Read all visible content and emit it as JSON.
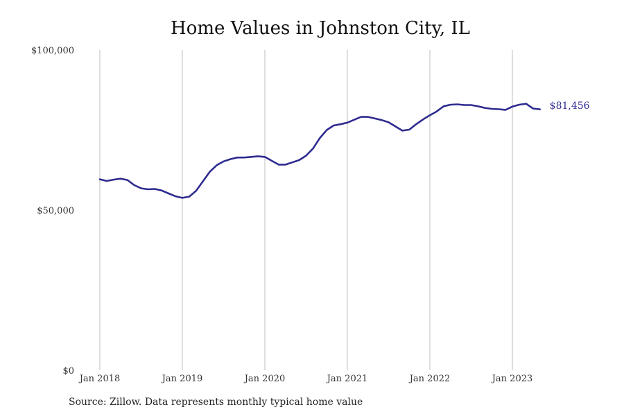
{
  "chart_data": {
    "type": "line",
    "title": "Home Values in Johnston City, IL",
    "xlabel": "",
    "ylabel": "",
    "ylim": [
      0,
      100000
    ],
    "y_ticks": [
      {
        "value": 0,
        "label": "$0"
      },
      {
        "value": 50000,
        "label": "$50,000"
      },
      {
        "value": 100000,
        "label": "$100,000"
      }
    ],
    "x_ticks": [
      {
        "year": 2018,
        "label": "Jan 2018"
      },
      {
        "year": 2019,
        "label": "Jan 2019"
      },
      {
        "year": 2020,
        "label": "Jan 2020"
      },
      {
        "year": 2021,
        "label": "Jan 2021"
      },
      {
        "year": 2022,
        "label": "Jan 2022"
      },
      {
        "year": 2023,
        "label": "Jan 2023"
      }
    ],
    "grid": "vertical at year ticks",
    "series": [
      {
        "color": "#2e2b8f",
        "x": [
          "2018-01",
          "2018-02",
          "2018-03",
          "2018-04",
          "2018-05",
          "2018-06",
          "2018-07",
          "2018-08",
          "2018-09",
          "2018-10",
          "2018-11",
          "2018-12",
          "2019-01",
          "2019-02",
          "2019-03",
          "2019-04",
          "2019-05",
          "2019-06",
          "2019-07",
          "2019-08",
          "2019-09",
          "2019-10",
          "2019-11",
          "2019-12",
          "2020-01",
          "2020-02",
          "2020-03",
          "2020-04",
          "2020-05",
          "2020-06",
          "2020-07",
          "2020-08",
          "2020-09",
          "2020-10",
          "2020-11",
          "2020-12",
          "2021-01",
          "2021-02",
          "2021-03",
          "2021-04",
          "2021-05",
          "2021-06",
          "2021-07",
          "2021-08",
          "2021-09",
          "2021-10",
          "2021-11",
          "2021-12",
          "2022-01",
          "2022-02",
          "2022-03",
          "2022-04",
          "2022-05",
          "2022-06",
          "2022-07",
          "2022-08",
          "2022-09",
          "2022-10",
          "2022-11",
          "2022-12",
          "2023-01",
          "2023-02",
          "2023-03",
          "2023-04",
          "2023-05"
        ],
        "values": [
          59600,
          59100,
          59500,
          59800,
          59400,
          57800,
          56800,
          56500,
          56600,
          56100,
          55200,
          54300,
          53800,
          54200,
          56000,
          59000,
          62000,
          64000,
          65200,
          65900,
          66400,
          66400,
          66600,
          66800,
          66600,
          65400,
          64200,
          64200,
          64900,
          65600,
          67000,
          69200,
          72500,
          75000,
          76400,
          76800,
          77300,
          78200,
          79100,
          79100,
          78600,
          78100,
          77400,
          76100,
          74800,
          75100,
          76800,
          78300,
          79600,
          80800,
          82400,
          82900,
          83000,
          82800,
          82800,
          82400,
          81900,
          81600,
          81500,
          81300,
          82300,
          82900,
          83200,
          81700,
          81456
        ]
      }
    ],
    "end_label": "$81,456"
  },
  "footer": {
    "source": "Source: Zillow. Data represents monthly typical home value"
  }
}
